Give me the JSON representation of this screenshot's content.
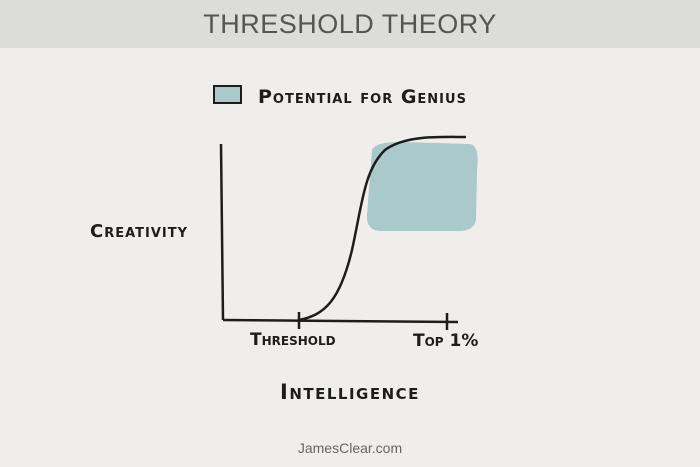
{
  "header": {
    "title": "THRESHOLD THEORY"
  },
  "legend": {
    "label": "Potential for Genius",
    "color": "#a9c9ca"
  },
  "axes": {
    "y_label": "Creativity",
    "x_label": "Intelligence",
    "x_ticks": [
      "Threshold",
      "Top 1%"
    ]
  },
  "footer": {
    "text": "JamesClear.com"
  }
}
